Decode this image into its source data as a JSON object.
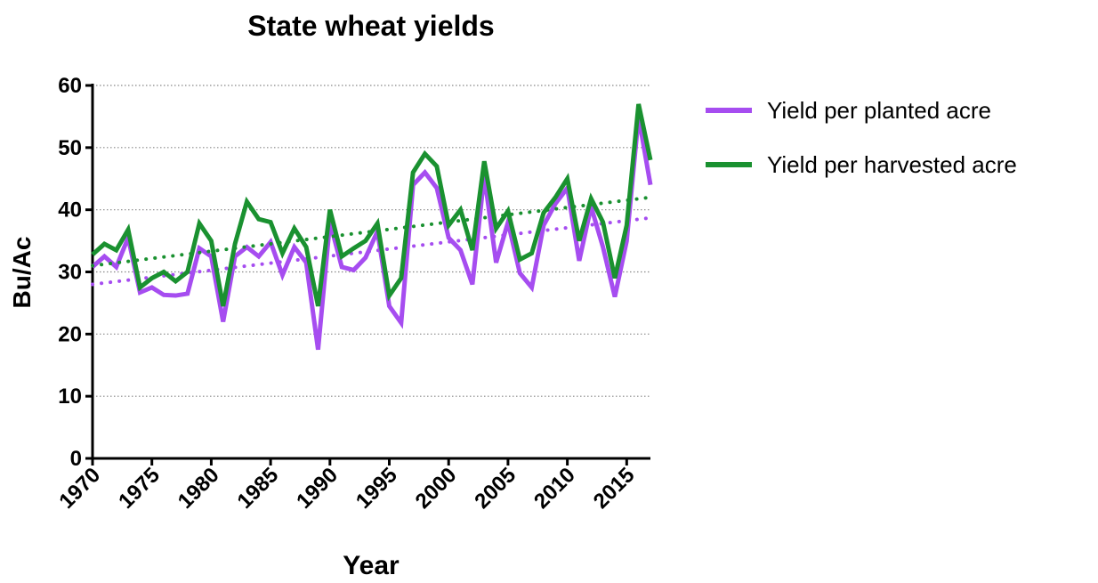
{
  "chart_data": {
    "type": "line",
    "title": "State wheat yields",
    "x_label": "Year",
    "y_label": "Bu/Ac",
    "x": [
      1970,
      1971,
      1972,
      1973,
      1974,
      1975,
      1976,
      1977,
      1978,
      1979,
      1980,
      1981,
      1982,
      1983,
      1984,
      1985,
      1986,
      1987,
      1988,
      1989,
      1990,
      1991,
      1992,
      1993,
      1994,
      1995,
      1996,
      1997,
      1998,
      1999,
      2000,
      2001,
      2002,
      2003,
      2004,
      2005,
      2006,
      2007,
      2008,
      2009,
      2010,
      2011,
      2012,
      2013,
      2014,
      2015,
      2016,
      2017
    ],
    "series": [
      {
        "name": "Yield per planted acre",
        "color": "#a64df0",
        "values": [
          30.8,
          32.5,
          30.8,
          35.5,
          26.7,
          27.5,
          26.3,
          26.2,
          26.5,
          33.8,
          32.5,
          22,
          32.5,
          34,
          32.5,
          34.8,
          29.5,
          34,
          31.5,
          17.5,
          38,
          30.8,
          30.3,
          32.3,
          36.5,
          24.5,
          21.8,
          44,
          46,
          43.5,
          35.5,
          33.5,
          28,
          45.5,
          31.5,
          38,
          29.8,
          27.5,
          37.5,
          41,
          43.5,
          31.8,
          40.5,
          34,
          26,
          35,
          55,
          44
        ],
        "trend": [
          28,
          38.7
        ]
      },
      {
        "name": "Yield per harvested acre",
        "color": "#1a9130",
        "values": [
          32.8,
          34.5,
          33.5,
          36.8,
          27.5,
          29,
          30,
          28.5,
          30,
          37.8,
          35,
          24.5,
          34.5,
          41.3,
          38.5,
          38,
          33,
          37,
          34,
          24.5,
          40,
          32.5,
          33.8,
          35,
          37.8,
          26.2,
          29,
          46,
          49,
          47,
          37.5,
          40,
          33.5,
          47.8,
          37,
          39.8,
          32,
          33,
          39.5,
          42,
          45,
          35,
          41.8,
          38,
          29,
          37.5,
          57,
          48
        ],
        "trend": [
          31,
          42
        ]
      }
    ],
    "xlim": [
      1970,
      2017
    ],
    "xticks": [
      1970,
      1975,
      1980,
      1985,
      1990,
      1995,
      2000,
      2005,
      2010,
      2015
    ],
    "ylim": [
      0,
      60
    ],
    "yticks": [
      0,
      10,
      20,
      30,
      40,
      50,
      60
    ],
    "grid": true,
    "legend": "right"
  }
}
